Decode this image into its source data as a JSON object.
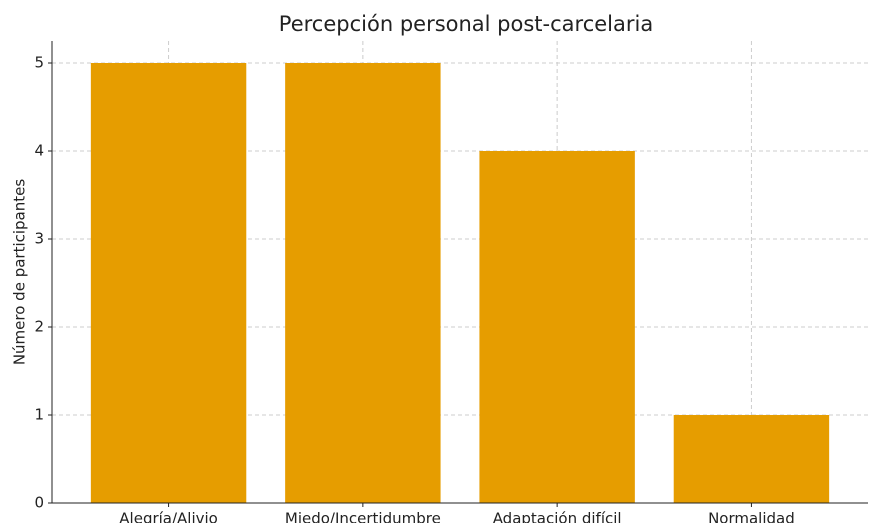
{
  "chart_data": {
    "type": "bar",
    "title": "Percepción personal post-carcelaria",
    "ylabel": "Número de participantes",
    "categories": [
      "Alegría/Alivio",
      "Miedo/Incertidumbre",
      "Adaptación difícil",
      "Normalidad"
    ],
    "values": [
      5,
      5,
      4,
      1
    ],
    "color": "#e69d00",
    "ylim": [
      0,
      5.25
    ],
    "yticks": [
      0,
      1,
      2,
      3,
      4,
      5
    ],
    "grid": true
  }
}
